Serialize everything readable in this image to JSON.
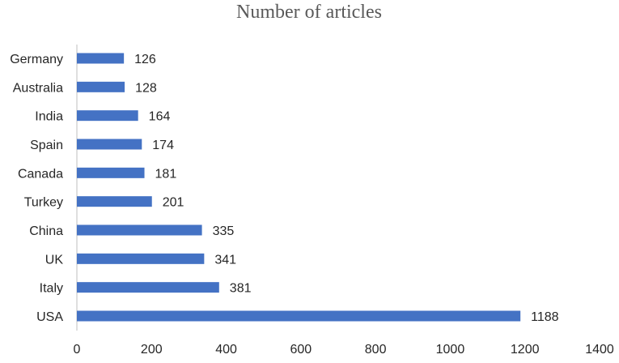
{
  "chart_data": {
    "type": "bar",
    "orientation": "horizontal",
    "title": "Number of articles",
    "xlabel": "",
    "ylabel": "",
    "categories": [
      "Germany",
      "Australia",
      "India",
      "Spain",
      "Canada",
      "Turkey",
      "China",
      "UK",
      "Italy",
      "USA"
    ],
    "values": [
      126,
      128,
      164,
      174,
      181,
      201,
      335,
      341,
      381,
      1188
    ],
    "xlim": [
      0,
      1400
    ],
    "x_ticks": [
      "0",
      "200",
      "400",
      "600",
      "800",
      "1000",
      "1200",
      "1400"
    ],
    "data_labels": true,
    "grid": false,
    "legend": "none",
    "bar_color": "#4472C4"
  }
}
